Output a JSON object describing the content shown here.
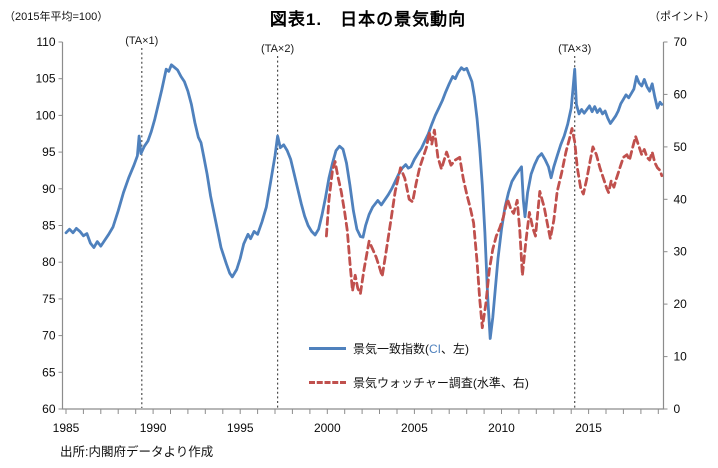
{
  "header": {
    "title": "図表1.　日本の景気動向",
    "left_axis_unit": "（2015年平均=100）",
    "right_axis_unit": "（ポイント）"
  },
  "legend": {
    "items": [
      {
        "text_before": "景気一致指数(",
        "highlight": "CI",
        "highlight_color": "#4F81BD",
        "text_after": "、左)"
      },
      {
        "text_before": "景気ウォッチャー調査(水準、右)",
        "highlight": "",
        "text_after": ""
      }
    ]
  },
  "source": "出所:内閣府データより作成",
  "chart_data": {
    "type": "line",
    "title": "図表1. 日本の景気動向",
    "grid": false,
    "legend_position": "inside-lower-middle",
    "x_axis": {
      "range": [
        1984.8,
        2019.3
      ],
      "tick_step_years": 1,
      "label_years": [
        1985,
        1990,
        1995,
        2000,
        2005,
        2010,
        2015
      ]
    },
    "left_axis": {
      "label": "（2015年平均=100）",
      "range": [
        60,
        110
      ],
      "tick_step": 5
    },
    "right_axis": {
      "label": "（ポイント）",
      "range": [
        0,
        70
      ],
      "tick_step": 10
    },
    "vlines": [
      {
        "label": "(TA×1)",
        "x": 1989.35
      },
      {
        "label": "(TA×2)",
        "x": 1997.15
      },
      {
        "label": "(TA×3)",
        "x": 2014.2
      }
    ],
    "series": [
      {
        "name": "景気一致指数(CI、左)",
        "axis": "left",
        "color": "#4F81BD",
        "style": "solid",
        "width": 2.8,
        "points": [
          [
            1985.0,
            84.0
          ],
          [
            1985.2,
            84.5
          ],
          [
            1985.4,
            84.0
          ],
          [
            1985.6,
            84.6
          ],
          [
            1985.8,
            84.2
          ],
          [
            1986.0,
            83.6
          ],
          [
            1986.2,
            83.9
          ],
          [
            1986.4,
            82.6
          ],
          [
            1986.6,
            82.0
          ],
          [
            1986.8,
            82.8
          ],
          [
            1987.0,
            82.2
          ],
          [
            1987.2,
            82.9
          ],
          [
            1987.45,
            83.8
          ],
          [
            1987.7,
            84.8
          ],
          [
            1988.0,
            87.0
          ],
          [
            1988.3,
            89.5
          ],
          [
            1988.6,
            91.5
          ],
          [
            1988.9,
            93.2
          ],
          [
            1989.1,
            94.5
          ],
          [
            1989.2,
            97.2
          ],
          [
            1989.3,
            94.8
          ],
          [
            1989.5,
            95.8
          ],
          [
            1989.7,
            96.5
          ],
          [
            1989.9,
            97.8
          ],
          [
            1990.1,
            99.5
          ],
          [
            1990.3,
            101.5
          ],
          [
            1990.5,
            103.5
          ],
          [
            1990.75,
            106.3
          ],
          [
            1990.9,
            106.0
          ],
          [
            1991.05,
            106.9
          ],
          [
            1991.2,
            106.6
          ],
          [
            1991.4,
            106.2
          ],
          [
            1991.6,
            105.3
          ],
          [
            1991.8,
            104.6
          ],
          [
            1992.0,
            103.3
          ],
          [
            1992.2,
            101.5
          ],
          [
            1992.4,
            99.0
          ],
          [
            1992.6,
            97.0
          ],
          [
            1992.75,
            96.3
          ],
          [
            1992.9,
            94.5
          ],
          [
            1993.1,
            92.0
          ],
          [
            1993.3,
            89.0
          ],
          [
            1993.6,
            85.5
          ],
          [
            1993.9,
            82.0
          ],
          [
            1994.2,
            79.8
          ],
          [
            1994.4,
            78.5
          ],
          [
            1994.55,
            78.0
          ],
          [
            1994.8,
            79.0
          ],
          [
            1995.0,
            80.5
          ],
          [
            1995.2,
            82.5
          ],
          [
            1995.45,
            83.8
          ],
          [
            1995.6,
            83.2
          ],
          [
            1995.8,
            84.2
          ],
          [
            1996.0,
            83.8
          ],
          [
            1996.25,
            85.5
          ],
          [
            1996.5,
            87.5
          ],
          [
            1996.75,
            91.0
          ],
          [
            1997.0,
            94.5
          ],
          [
            1997.15,
            97.2
          ],
          [
            1997.3,
            95.6
          ],
          [
            1997.5,
            96.0
          ],
          [
            1997.7,
            95.2
          ],
          [
            1997.9,
            94.0
          ],
          [
            1998.1,
            92.0
          ],
          [
            1998.3,
            90.0
          ],
          [
            1998.5,
            88.0
          ],
          [
            1998.7,
            86.3
          ],
          [
            1998.9,
            85.0
          ],
          [
            1999.1,
            84.2
          ],
          [
            1999.3,
            83.7
          ],
          [
            1999.5,
            84.5
          ],
          [
            1999.7,
            86.5
          ],
          [
            1999.9,
            88.8
          ],
          [
            2000.1,
            91.5
          ],
          [
            2000.3,
            93.5
          ],
          [
            2000.5,
            95.2
          ],
          [
            2000.7,
            95.8
          ],
          [
            2000.9,
            95.4
          ],
          [
            2001.1,
            93.5
          ],
          [
            2001.3,
            90.5
          ],
          [
            2001.5,
            87.0
          ],
          [
            2001.7,
            84.5
          ],
          [
            2001.9,
            83.5
          ],
          [
            2002.05,
            83.4
          ],
          [
            2002.2,
            85.0
          ],
          [
            2002.4,
            86.5
          ],
          [
            2002.6,
            87.5
          ],
          [
            2002.9,
            88.4
          ],
          [
            2003.1,
            87.8
          ],
          [
            2003.3,
            88.5
          ],
          [
            2003.5,
            89.2
          ],
          [
            2003.7,
            90.0
          ],
          [
            2003.9,
            91.0
          ],
          [
            2004.1,
            92.0
          ],
          [
            2004.3,
            92.8
          ],
          [
            2004.5,
            93.3
          ],
          [
            2004.65,
            92.8
          ],
          [
            2004.8,
            93.0
          ],
          [
            2005.0,
            94.0
          ],
          [
            2005.2,
            94.8
          ],
          [
            2005.4,
            95.5
          ],
          [
            2005.6,
            96.5
          ],
          [
            2005.8,
            97.5
          ],
          [
            2006.0,
            98.8
          ],
          [
            2006.2,
            100.0
          ],
          [
            2006.4,
            101.0
          ],
          [
            2006.6,
            102.0
          ],
          [
            2006.8,
            103.2
          ],
          [
            2007.0,
            104.3
          ],
          [
            2007.2,
            105.3
          ],
          [
            2007.35,
            105.0
          ],
          [
            2007.5,
            105.8
          ],
          [
            2007.7,
            106.5
          ],
          [
            2007.85,
            106.2
          ],
          [
            2008.0,
            106.4
          ],
          [
            2008.15,
            105.5
          ],
          [
            2008.3,
            104.6
          ],
          [
            2008.45,
            102.5
          ],
          [
            2008.6,
            99.5
          ],
          [
            2008.75,
            95.5
          ],
          [
            2008.9,
            90.5
          ],
          [
            2009.05,
            84.0
          ],
          [
            2009.2,
            75.5
          ],
          [
            2009.35,
            69.6
          ],
          [
            2009.5,
            72.5
          ],
          [
            2009.65,
            76.5
          ],
          [
            2009.8,
            80.5
          ],
          [
            2010.0,
            84.5
          ],
          [
            2010.2,
            87.5
          ],
          [
            2010.4,
            89.5
          ],
          [
            2010.6,
            91.0
          ],
          [
            2010.8,
            91.8
          ],
          [
            2011.0,
            92.5
          ],
          [
            2011.15,
            93.0
          ],
          [
            2011.25,
            88.5
          ],
          [
            2011.35,
            86.2
          ],
          [
            2011.5,
            89.5
          ],
          [
            2011.7,
            92.0
          ],
          [
            2011.9,
            93.3
          ],
          [
            2012.1,
            94.3
          ],
          [
            2012.3,
            94.8
          ],
          [
            2012.5,
            94.0
          ],
          [
            2012.7,
            93.0
          ],
          [
            2012.85,
            91.5
          ],
          [
            2013.0,
            93.0
          ],
          [
            2013.2,
            94.5
          ],
          [
            2013.4,
            96.0
          ],
          [
            2013.6,
            97.2
          ],
          [
            2013.8,
            98.8
          ],
          [
            2014.0,
            101.0
          ],
          [
            2014.1,
            103.5
          ],
          [
            2014.2,
            106.3
          ],
          [
            2014.3,
            101.5
          ],
          [
            2014.45,
            100.2
          ],
          [
            2014.6,
            100.8
          ],
          [
            2014.75,
            100.3
          ],
          [
            2014.9,
            100.8
          ],
          [
            2015.05,
            101.3
          ],
          [
            2015.2,
            100.5
          ],
          [
            2015.35,
            101.2
          ],
          [
            2015.5,
            100.4
          ],
          [
            2015.65,
            100.9
          ],
          [
            2015.8,
            100.2
          ],
          [
            2015.95,
            100.6
          ],
          [
            2016.1,
            99.6
          ],
          [
            2016.25,
            98.9
          ],
          [
            2016.4,
            99.4
          ],
          [
            2016.55,
            99.9
          ],
          [
            2016.7,
            100.6
          ],
          [
            2016.85,
            101.6
          ],
          [
            2017.0,
            102.2
          ],
          [
            2017.15,
            102.8
          ],
          [
            2017.3,
            102.4
          ],
          [
            2017.45,
            103.0
          ],
          [
            2017.6,
            103.6
          ],
          [
            2017.75,
            105.3
          ],
          [
            2017.9,
            104.4
          ],
          [
            2018.05,
            104.0
          ],
          [
            2018.2,
            104.9
          ],
          [
            2018.35,
            103.9
          ],
          [
            2018.5,
            103.3
          ],
          [
            2018.65,
            104.3
          ],
          [
            2018.8,
            102.5
          ],
          [
            2018.95,
            101.0
          ],
          [
            2019.1,
            101.8
          ],
          [
            2019.2,
            101.5
          ]
        ]
      },
      {
        "name": "景気ウォッチャー調査(水準、右)",
        "axis": "right",
        "color": "#C0504D",
        "style": "dashed",
        "width": 2.8,
        "points": [
          [
            1999.95,
            33.0
          ],
          [
            2000.1,
            40.0
          ],
          [
            2000.3,
            45.5
          ],
          [
            2000.45,
            47.2
          ],
          [
            2000.6,
            44.5
          ],
          [
            2000.8,
            41.5
          ],
          [
            2001.0,
            37.5
          ],
          [
            2001.15,
            34.0
          ],
          [
            2001.3,
            28.0
          ],
          [
            2001.45,
            22.5
          ],
          [
            2001.6,
            25.5
          ],
          [
            2001.75,
            23.0
          ],
          [
            2001.9,
            22.0
          ],
          [
            2002.1,
            26.5
          ],
          [
            2002.4,
            32.0
          ],
          [
            2002.6,
            30.5
          ],
          [
            2002.8,
            29.0
          ],
          [
            2003.0,
            27.0
          ],
          [
            2003.15,
            25.3
          ],
          [
            2003.4,
            30.5
          ],
          [
            2003.65,
            36.0
          ],
          [
            2003.9,
            41.5
          ],
          [
            2004.2,
            46.0
          ],
          [
            2004.45,
            44.0
          ],
          [
            2004.7,
            40.0
          ],
          [
            2004.9,
            39.5
          ],
          [
            2005.1,
            43.0
          ],
          [
            2005.3,
            46.0
          ],
          [
            2005.5,
            48.0
          ],
          [
            2005.7,
            50.0
          ],
          [
            2005.85,
            52.8
          ],
          [
            2006.0,
            50.5
          ],
          [
            2006.15,
            53.2
          ],
          [
            2006.35,
            48.0
          ],
          [
            2006.55,
            45.8
          ],
          [
            2006.85,
            49.0
          ],
          [
            2007.1,
            46.5
          ],
          [
            2007.35,
            47.5
          ],
          [
            2007.6,
            48.0
          ],
          [
            2007.8,
            44.0
          ],
          [
            2008.0,
            41.0
          ],
          [
            2008.2,
            38.5
          ],
          [
            2008.4,
            35.5
          ],
          [
            2008.6,
            28.0
          ],
          [
            2008.75,
            21.0
          ],
          [
            2008.9,
            15.5
          ],
          [
            2009.1,
            20.0
          ],
          [
            2009.3,
            26.5
          ],
          [
            2009.5,
            30.5
          ],
          [
            2009.7,
            33.0
          ],
          [
            2009.9,
            34.5
          ],
          [
            2010.1,
            36.5
          ],
          [
            2010.35,
            40.0
          ],
          [
            2010.55,
            38.0
          ],
          [
            2010.7,
            37.3
          ],
          [
            2010.9,
            39.8
          ],
          [
            2011.05,
            34.0
          ],
          [
            2011.2,
            25.5
          ],
          [
            2011.4,
            32.0
          ],
          [
            2011.6,
            37.5
          ],
          [
            2011.8,
            34.5
          ],
          [
            2011.95,
            33.0
          ],
          [
            2012.2,
            41.5
          ],
          [
            2012.45,
            38.5
          ],
          [
            2012.65,
            35.0
          ],
          [
            2012.8,
            32.5
          ],
          [
            2013.0,
            36.0
          ],
          [
            2013.2,
            41.5
          ],
          [
            2013.45,
            45.0
          ],
          [
            2013.7,
            49.0
          ],
          [
            2013.9,
            51.5
          ],
          [
            2014.05,
            53.5
          ],
          [
            2014.2,
            51.0
          ],
          [
            2014.35,
            46.0
          ],
          [
            2014.55,
            42.0
          ],
          [
            2014.7,
            41.0
          ],
          [
            2014.9,
            44.0
          ],
          [
            2015.1,
            47.5
          ],
          [
            2015.25,
            50.0
          ],
          [
            2015.45,
            48.5
          ],
          [
            2015.65,
            46.0
          ],
          [
            2015.85,
            44.0
          ],
          [
            2016.05,
            42.0
          ],
          [
            2016.15,
            41.3
          ],
          [
            2016.3,
            43.5
          ],
          [
            2016.45,
            42.3
          ],
          [
            2016.6,
            44.0
          ],
          [
            2016.8,
            46.0
          ],
          [
            2017.0,
            48.0
          ],
          [
            2017.2,
            48.5
          ],
          [
            2017.35,
            47.5
          ],
          [
            2017.5,
            49.5
          ],
          [
            2017.7,
            52.0
          ],
          [
            2017.9,
            50.0
          ],
          [
            2018.05,
            48.5
          ],
          [
            2018.2,
            49.5
          ],
          [
            2018.35,
            48.0
          ],
          [
            2018.5,
            47.5
          ],
          [
            2018.65,
            49.0
          ],
          [
            2018.8,
            47.0
          ],
          [
            2018.95,
            46.0
          ],
          [
            2019.1,
            45.5
          ],
          [
            2019.2,
            44.5
          ]
        ]
      }
    ]
  }
}
